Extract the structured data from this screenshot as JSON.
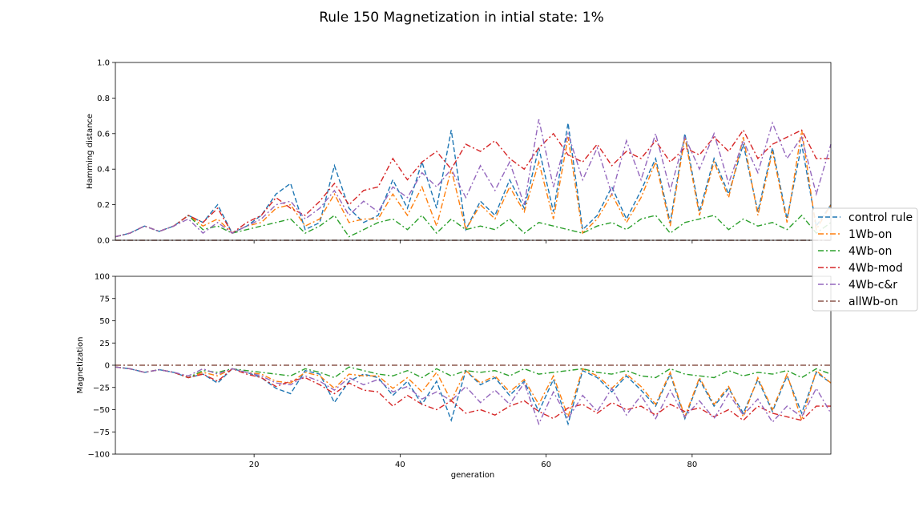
{
  "chart_data": {
    "title": "Rule 150 Magnetization in intial state: 1%",
    "xlabel": "generation",
    "xlim": [
      1,
      99
    ],
    "xticks": [
      20,
      40,
      60,
      80
    ],
    "legend": {
      "placement": "center-right",
      "entries": [
        {
          "label": "control rule",
          "color": "#1f77b4",
          "dash": "dashed"
        },
        {
          "label": "1Wb-on",
          "color": "#ff7f0e",
          "dash": "dashdot"
        },
        {
          "label": "4Wb-on",
          "color": "#2ca02c",
          "dash": "dashdot"
        },
        {
          "label": "4Wb-mod",
          "color": "#d62728",
          "dash": "dashdot"
        },
        {
          "label": "4Wb-c&r",
          "color": "#9467bd",
          "dash": "dashdot"
        },
        {
          "label": "allWb-on",
          "color": "#8c564b",
          "dash": "dashdot"
        }
      ]
    },
    "panels": [
      {
        "type": "line",
        "ylabel": "Hamming distance",
        "ylim": [
          0.0,
          1.0
        ],
        "yticks": [
          "0.0",
          "0.2",
          "0.4",
          "0.6",
          "0.8",
          "1.0"
        ],
        "ytick_values": [
          0.0,
          0.2,
          0.4,
          0.6,
          0.8,
          1.0
        ],
        "x": [
          1,
          3,
          5,
          7,
          9,
          11,
          13,
          15,
          17,
          19,
          21,
          23,
          25,
          27,
          29,
          31,
          33,
          35,
          37,
          39,
          41,
          43,
          45,
          47,
          49,
          51,
          53,
          55,
          57,
          59,
          61,
          63,
          65,
          67,
          69,
          71,
          73,
          75,
          77,
          79,
          81,
          83,
          85,
          87,
          89,
          91,
          93,
          95,
          97,
          99
        ],
        "series": [
          {
            "name": "control rule",
            "values": [
              0.02,
              0.04,
              0.08,
              0.05,
              0.08,
              0.14,
              0.1,
              0.2,
              0.04,
              0.08,
              0.14,
              0.26,
              0.32,
              0.06,
              0.1,
              0.42,
              0.18,
              0.1,
              0.14,
              0.34,
              0.18,
              0.44,
              0.18,
              0.62,
              0.06,
              0.22,
              0.14,
              0.34,
              0.18,
              0.52,
              0.16,
              0.66,
              0.06,
              0.14,
              0.3,
              0.12,
              0.28,
              0.46,
              0.1,
              0.6,
              0.16,
              0.46,
              0.26,
              0.54,
              0.16,
              0.52,
              0.12,
              0.54,
              0.08,
              0.2
            ]
          },
          {
            "name": "1Wb-on",
            "values": [
              0.02,
              0.04,
              0.08,
              0.05,
              0.08,
              0.14,
              0.08,
              0.12,
              0.04,
              0.08,
              0.1,
              0.18,
              0.2,
              0.08,
              0.12,
              0.26,
              0.1,
              0.12,
              0.12,
              0.26,
              0.14,
              0.3,
              0.08,
              0.4,
              0.06,
              0.2,
              0.12,
              0.3,
              0.16,
              0.44,
              0.12,
              0.58,
              0.04,
              0.12,
              0.26,
              0.1,
              0.24,
              0.44,
              0.08,
              0.58,
              0.14,
              0.44,
              0.24,
              0.58,
              0.14,
              0.5,
              0.1,
              0.62,
              0.06,
              0.2
            ]
          },
          {
            "name": "4Wb-on",
            "values": [
              0.02,
              0.04,
              0.08,
              0.05,
              0.08,
              0.14,
              0.06,
              0.08,
              0.04,
              0.06,
              0.08,
              0.1,
              0.12,
              0.04,
              0.08,
              0.14,
              0.02,
              0.06,
              0.1,
              0.12,
              0.06,
              0.14,
              0.04,
              0.12,
              0.06,
              0.08,
              0.06,
              0.12,
              0.04,
              0.1,
              0.08,
              0.06,
              0.04,
              0.08,
              0.1,
              0.06,
              0.12,
              0.14,
              0.04,
              0.1,
              0.12,
              0.14,
              0.06,
              0.12,
              0.08,
              0.1,
              0.06,
              0.14,
              0.04,
              0.1
            ]
          },
          {
            "name": "4Wb-mod",
            "values": [
              0.02,
              0.04,
              0.08,
              0.05,
              0.08,
              0.14,
              0.1,
              0.18,
              0.04,
              0.1,
              0.14,
              0.24,
              0.18,
              0.14,
              0.22,
              0.32,
              0.2,
              0.28,
              0.3,
              0.46,
              0.34,
              0.44,
              0.5,
              0.4,
              0.54,
              0.5,
              0.56,
              0.46,
              0.4,
              0.52,
              0.6,
              0.48,
              0.44,
              0.54,
              0.42,
              0.5,
              0.46,
              0.56,
              0.44,
              0.52,
              0.48,
              0.58,
              0.5,
              0.62,
              0.46,
              0.54,
              0.58,
              0.62,
              0.46,
              0.46
            ]
          },
          {
            "name": "4Wb-c&r",
            "values": [
              0.02,
              0.04,
              0.08,
              0.05,
              0.08,
              0.12,
              0.04,
              0.1,
              0.04,
              0.08,
              0.12,
              0.2,
              0.22,
              0.12,
              0.18,
              0.28,
              0.14,
              0.22,
              0.16,
              0.3,
              0.24,
              0.38,
              0.3,
              0.4,
              0.24,
              0.42,
              0.28,
              0.44,
              0.2,
              0.68,
              0.3,
              0.6,
              0.34,
              0.52,
              0.26,
              0.56,
              0.34,
              0.6,
              0.28,
              0.58,
              0.4,
              0.6,
              0.32,
              0.56,
              0.38,
              0.66,
              0.46,
              0.58,
              0.26,
              0.54
            ]
          },
          {
            "name": "allWb-on",
            "values": [
              0,
              0,
              0,
              0,
              0,
              0,
              0,
              0,
              0,
              0,
              0,
              0,
              0,
              0,
              0,
              0,
              0,
              0,
              0,
              0,
              0,
              0,
              0,
              0,
              0,
              0,
              0,
              0,
              0,
              0,
              0,
              0,
              0,
              0,
              0,
              0,
              0,
              0,
              0,
              0,
              0,
              0,
              0,
              0,
              0,
              0,
              0,
              0,
              0,
              0
            ]
          }
        ]
      },
      {
        "type": "line",
        "ylabel": "Magnetization",
        "ylim": [
          -100,
          100
        ],
        "yticks": [
          "−100",
          "−75",
          "−50",
          "−25",
          "0",
          "25",
          "50",
          "75",
          "100"
        ],
        "ytick_values": [
          -100,
          -75,
          -50,
          -25,
          0,
          25,
          50,
          75,
          100
        ],
        "x": [
          1,
          3,
          5,
          7,
          9,
          11,
          13,
          15,
          17,
          19,
          21,
          23,
          25,
          27,
          29,
          31,
          33,
          35,
          37,
          39,
          41,
          43,
          45,
          47,
          49,
          51,
          53,
          55,
          57,
          59,
          61,
          63,
          65,
          67,
          69,
          71,
          73,
          75,
          77,
          79,
          81,
          83,
          85,
          87,
          89,
          91,
          93,
          95,
          97,
          99
        ],
        "series": [
          {
            "name": "control rule",
            "values": [
              -2,
              -4,
              -8,
              -5,
              -8,
              -14,
              -10,
              -20,
              -4,
              -8,
              -14,
              -26,
              -32,
              -6,
              -10,
              -42,
              -18,
              -10,
              -14,
              -34,
              -18,
              -44,
              -18,
              -62,
              -6,
              -22,
              -14,
              -34,
              -18,
              -52,
              -16,
              -66,
              -6,
              -14,
              -30,
              -12,
              -28,
              -46,
              -10,
              -60,
              -16,
              -46,
              -26,
              -54,
              -16,
              -52,
              -12,
              -54,
              -8,
              -20
            ]
          },
          {
            "name": "1Wb-on",
            "values": [
              -2,
              -4,
              -8,
              -5,
              -8,
              -14,
              -8,
              -12,
              -4,
              -8,
              -10,
              -18,
              -20,
              -8,
              -12,
              -26,
              -10,
              -12,
              -12,
              -26,
              -14,
              -30,
              -8,
              -40,
              -6,
              -20,
              -12,
              -30,
              -16,
              -44,
              -12,
              -58,
              -4,
              -12,
              -26,
              -10,
              -24,
              -44,
              -8,
              -58,
              -14,
              -44,
              -24,
              -58,
              -14,
              -50,
              -10,
              -62,
              -6,
              -20
            ]
          },
          {
            "name": "4Wb-on",
            "values": [
              -2,
              -4,
              -8,
              -5,
              -8,
              -14,
              -6,
              -8,
              -4,
              -6,
              -8,
              -10,
              -12,
              -4,
              -8,
              -14,
              -2,
              -6,
              -10,
              -12,
              -6,
              -14,
              -4,
              -12,
              -6,
              -8,
              -6,
              -12,
              -4,
              -10,
              -8,
              -6,
              -4,
              -8,
              -10,
              -6,
              -12,
              -14,
              -4,
              -10,
              -12,
              -14,
              -6,
              -12,
              -8,
              -10,
              -6,
              -14,
              -4,
              -10
            ]
          },
          {
            "name": "4Wb-mod",
            "values": [
              -2,
              -4,
              -8,
              -5,
              -8,
              -14,
              -10,
              -18,
              -4,
              -10,
              -14,
              -24,
              -18,
              -14,
              -22,
              -32,
              -20,
              -28,
              -30,
              -46,
              -34,
              -44,
              -50,
              -40,
              -54,
              -50,
              -56,
              -46,
              -40,
              -52,
              -60,
              -48,
              -44,
              -54,
              -42,
              -50,
              -46,
              -56,
              -44,
              -52,
              -48,
              -58,
              -50,
              -62,
              -46,
              -54,
              -58,
              -62,
              -46,
              -46
            ]
          },
          {
            "name": "4Wb-c&r",
            "values": [
              -2,
              -4,
              -8,
              -5,
              -8,
              -12,
              -4,
              -10,
              -4,
              -8,
              -12,
              -20,
              -22,
              -12,
              -18,
              -28,
              -14,
              -22,
              -16,
              -30,
              -24,
              -38,
              -30,
              -40,
              -24,
              -42,
              -28,
              -44,
              -20,
              -66,
              -30,
              -60,
              -34,
              -52,
              -26,
              -56,
              -34,
              -60,
              -28,
              -58,
              -40,
              -60,
              -32,
              -56,
              -38,
              -64,
              -46,
              -58,
              -26,
              -54
            ]
          },
          {
            "name": "allWb-on",
            "values": [
              0,
              0,
              0,
              0,
              0,
              0,
              0,
              0,
              0,
              0,
              0,
              0,
              0,
              0,
              0,
              0,
              0,
              0,
              0,
              0,
              0,
              0,
              0,
              0,
              0,
              0,
              0,
              0,
              0,
              0,
              0,
              0,
              0,
              0,
              0,
              0,
              0,
              0,
              0,
              0,
              0,
              0,
              0,
              0,
              0,
              0,
              0,
              0,
              0,
              0
            ]
          }
        ]
      }
    ]
  }
}
